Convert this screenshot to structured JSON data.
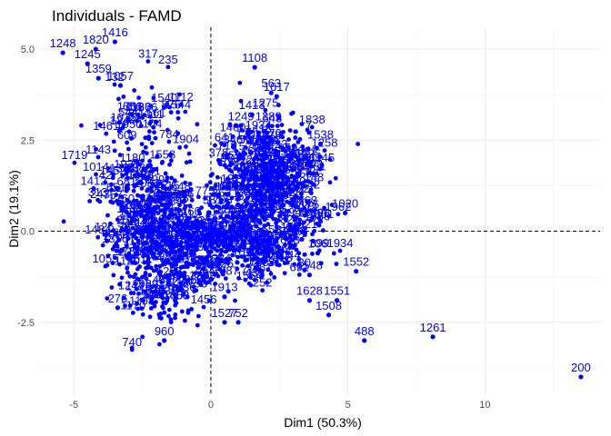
{
  "chart_data": {
    "type": "scatter",
    "title": "Individuals - FAMD",
    "xlabel": "Dim1 (50.3%)",
    "ylabel": "Dim2 (19.1%)",
    "xlim": [
      -6.3,
      14.2
    ],
    "ylim": [
      -4.5,
      5.6
    ],
    "x_ticks": [
      -5,
      0,
      5,
      10
    ],
    "y_ticks": [
      -2.5,
      0.0,
      2.5,
      5.0
    ],
    "x_tick_labels": [
      "-5",
      "0",
      "5",
      "10"
    ],
    "y_tick_labels": [
      "-2.5",
      "0.0",
      "2.5",
      "5.0"
    ],
    "grid": true,
    "reference_lines": {
      "x": 0,
      "y": 0,
      "style": "dashed"
    },
    "point_color": "#0000ff",
    "labeled_points": [
      {
        "id": "1248",
        "x": -5.4,
        "y": 4.9
      },
      {
        "id": "1820",
        "x": -4.2,
        "y": 5.0
      },
      {
        "id": "1416",
        "x": -3.5,
        "y": 5.2
      },
      {
        "id": "1245",
        "x": -4.5,
        "y": 4.6
      },
      {
        "id": "1359",
        "x": -4.1,
        "y": 4.2
      },
      {
        "id": "1057",
        "x": -3.3,
        "y": 4.0
      },
      {
        "id": "1540",
        "x": -1.7,
        "y": 3.4
      },
      {
        "id": "561",
        "x": -2.0,
        "y": 3.0
      },
      {
        "id": "1108",
        "x": 1.6,
        "y": 4.5
      },
      {
        "id": "563",
        "x": 2.2,
        "y": 3.8
      },
      {
        "id": "1617",
        "x": 2.4,
        "y": 3.7
      },
      {
        "id": "1413",
        "x": 1.5,
        "y": 3.2
      },
      {
        "id": "1389",
        "x": 2.1,
        "y": 2.9
      },
      {
        "id": "1249",
        "x": 1.1,
        "y": 2.9
      },
      {
        "id": "1400",
        "x": 0.8,
        "y": 2.6
      },
      {
        "id": "1538",
        "x": 4.0,
        "y": 2.4
      },
      {
        "id": "719",
        "x": 0.6,
        "y": 2.1
      },
      {
        "id": "1702",
        "x": 3.6,
        "y": 1.6
      },
      {
        "id": "1020",
        "x": 4.9,
        "y": 0.5
      },
      {
        "id": "1552",
        "x": 5.3,
        "y": -1.1
      },
      {
        "id": "1551",
        "x": 4.6,
        "y": -1.9
      },
      {
        "id": "1508",
        "x": 4.3,
        "y": -2.3
      },
      {
        "id": "1628",
        "x": 3.6,
        "y": -1.9
      },
      {
        "id": "1548",
        "x": 3.6,
        "y": -1.2
      },
      {
        "id": "106",
        "x": 3.9,
        "y": -0.6
      },
      {
        "id": "1913",
        "x": 0.5,
        "y": -1.8
      },
      {
        "id": "1527",
        "x": 0.5,
        "y": -2.5
      },
      {
        "id": "752",
        "x": 1.0,
        "y": -2.5
      },
      {
        "id": "276",
        "x": -3.4,
        "y": -2.1
      },
      {
        "id": "960",
        "x": -1.7,
        "y": -3.0
      },
      {
        "id": "488",
        "x": 5.6,
        "y": -3.0
      },
      {
        "id": "1261",
        "x": 8.1,
        "y": -2.9
      },
      {
        "id": "200",
        "x": 13.5,
        "y": -4.0
      }
    ],
    "clusters": [
      {
        "cx": -2.0,
        "cy": -0.2,
        "sx": 0.85,
        "sy": 0.9,
        "n": 420
      },
      {
        "cx": -2.5,
        "cy": 1.6,
        "sx": 0.85,
        "sy": 1.2,
        "n": 180
      },
      {
        "cx": 2.2,
        "cy": 1.4,
        "sx": 0.9,
        "sy": 0.8,
        "n": 460
      },
      {
        "cx": 2.0,
        "cy": -0.4,
        "sx": 0.95,
        "sy": 0.5,
        "n": 200
      },
      {
        "cx": -0.3,
        "cy": -0.6,
        "sx": 0.6,
        "sy": 0.5,
        "n": 120
      },
      {
        "cx": 0.7,
        "cy": 0.2,
        "sx": 0.7,
        "sy": 0.7,
        "n": 120
      },
      {
        "cx": -1.4,
        "cy": -1.9,
        "sx": 0.45,
        "sy": 0.4,
        "n": 50
      }
    ]
  }
}
